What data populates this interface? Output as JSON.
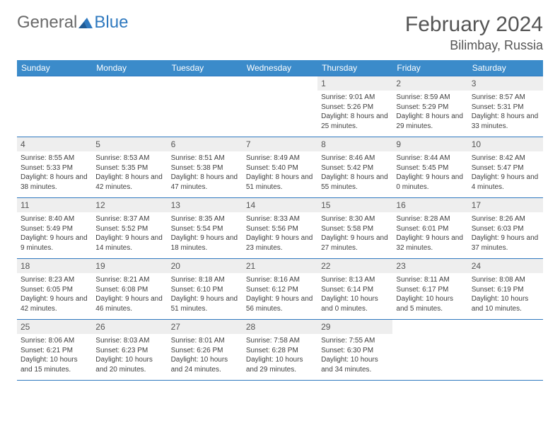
{
  "logo": {
    "word1": "General",
    "word2": "Blue"
  },
  "title": "February 2024",
  "location": "Bilimbay, Russia",
  "colors": {
    "header_bg": "#3b8bca",
    "header_text": "#ffffff",
    "border": "#2f79bf",
    "daynum_bg": "#eeeeee",
    "text": "#3f3f3f",
    "logo_gray": "#6a6a6a",
    "logo_blue": "#2f79bf"
  },
  "weekdays": [
    "Sunday",
    "Monday",
    "Tuesday",
    "Wednesday",
    "Thursday",
    "Friday",
    "Saturday"
  ],
  "weeks": [
    [
      null,
      null,
      null,
      null,
      {
        "n": "1",
        "sr": "Sunrise: 9:01 AM",
        "ss": "Sunset: 5:26 PM",
        "dl": "Daylight: 8 hours and 25 minutes."
      },
      {
        "n": "2",
        "sr": "Sunrise: 8:59 AM",
        "ss": "Sunset: 5:29 PM",
        "dl": "Daylight: 8 hours and 29 minutes."
      },
      {
        "n": "3",
        "sr": "Sunrise: 8:57 AM",
        "ss": "Sunset: 5:31 PM",
        "dl": "Daylight: 8 hours and 33 minutes."
      }
    ],
    [
      {
        "n": "4",
        "sr": "Sunrise: 8:55 AM",
        "ss": "Sunset: 5:33 PM",
        "dl": "Daylight: 8 hours and 38 minutes."
      },
      {
        "n": "5",
        "sr": "Sunrise: 8:53 AM",
        "ss": "Sunset: 5:35 PM",
        "dl": "Daylight: 8 hours and 42 minutes."
      },
      {
        "n": "6",
        "sr": "Sunrise: 8:51 AM",
        "ss": "Sunset: 5:38 PM",
        "dl": "Daylight: 8 hours and 47 minutes."
      },
      {
        "n": "7",
        "sr": "Sunrise: 8:49 AM",
        "ss": "Sunset: 5:40 PM",
        "dl": "Daylight: 8 hours and 51 minutes."
      },
      {
        "n": "8",
        "sr": "Sunrise: 8:46 AM",
        "ss": "Sunset: 5:42 PM",
        "dl": "Daylight: 8 hours and 55 minutes."
      },
      {
        "n": "9",
        "sr": "Sunrise: 8:44 AM",
        "ss": "Sunset: 5:45 PM",
        "dl": "Daylight: 9 hours and 0 minutes."
      },
      {
        "n": "10",
        "sr": "Sunrise: 8:42 AM",
        "ss": "Sunset: 5:47 PM",
        "dl": "Daylight: 9 hours and 4 minutes."
      }
    ],
    [
      {
        "n": "11",
        "sr": "Sunrise: 8:40 AM",
        "ss": "Sunset: 5:49 PM",
        "dl": "Daylight: 9 hours and 9 minutes."
      },
      {
        "n": "12",
        "sr": "Sunrise: 8:37 AM",
        "ss": "Sunset: 5:52 PM",
        "dl": "Daylight: 9 hours and 14 minutes."
      },
      {
        "n": "13",
        "sr": "Sunrise: 8:35 AM",
        "ss": "Sunset: 5:54 PM",
        "dl": "Daylight: 9 hours and 18 minutes."
      },
      {
        "n": "14",
        "sr": "Sunrise: 8:33 AM",
        "ss": "Sunset: 5:56 PM",
        "dl": "Daylight: 9 hours and 23 minutes."
      },
      {
        "n": "15",
        "sr": "Sunrise: 8:30 AM",
        "ss": "Sunset: 5:58 PM",
        "dl": "Daylight: 9 hours and 27 minutes."
      },
      {
        "n": "16",
        "sr": "Sunrise: 8:28 AM",
        "ss": "Sunset: 6:01 PM",
        "dl": "Daylight: 9 hours and 32 minutes."
      },
      {
        "n": "17",
        "sr": "Sunrise: 8:26 AM",
        "ss": "Sunset: 6:03 PM",
        "dl": "Daylight: 9 hours and 37 minutes."
      }
    ],
    [
      {
        "n": "18",
        "sr": "Sunrise: 8:23 AM",
        "ss": "Sunset: 6:05 PM",
        "dl": "Daylight: 9 hours and 42 minutes."
      },
      {
        "n": "19",
        "sr": "Sunrise: 8:21 AM",
        "ss": "Sunset: 6:08 PM",
        "dl": "Daylight: 9 hours and 46 minutes."
      },
      {
        "n": "20",
        "sr": "Sunrise: 8:18 AM",
        "ss": "Sunset: 6:10 PM",
        "dl": "Daylight: 9 hours and 51 minutes."
      },
      {
        "n": "21",
        "sr": "Sunrise: 8:16 AM",
        "ss": "Sunset: 6:12 PM",
        "dl": "Daylight: 9 hours and 56 minutes."
      },
      {
        "n": "22",
        "sr": "Sunrise: 8:13 AM",
        "ss": "Sunset: 6:14 PM",
        "dl": "Daylight: 10 hours and 0 minutes."
      },
      {
        "n": "23",
        "sr": "Sunrise: 8:11 AM",
        "ss": "Sunset: 6:17 PM",
        "dl": "Daylight: 10 hours and 5 minutes."
      },
      {
        "n": "24",
        "sr": "Sunrise: 8:08 AM",
        "ss": "Sunset: 6:19 PM",
        "dl": "Daylight: 10 hours and 10 minutes."
      }
    ],
    [
      {
        "n": "25",
        "sr": "Sunrise: 8:06 AM",
        "ss": "Sunset: 6:21 PM",
        "dl": "Daylight: 10 hours and 15 minutes."
      },
      {
        "n": "26",
        "sr": "Sunrise: 8:03 AM",
        "ss": "Sunset: 6:23 PM",
        "dl": "Daylight: 10 hours and 20 minutes."
      },
      {
        "n": "27",
        "sr": "Sunrise: 8:01 AM",
        "ss": "Sunset: 6:26 PM",
        "dl": "Daylight: 10 hours and 24 minutes."
      },
      {
        "n": "28",
        "sr": "Sunrise: 7:58 AM",
        "ss": "Sunset: 6:28 PM",
        "dl": "Daylight: 10 hours and 29 minutes."
      },
      {
        "n": "29",
        "sr": "Sunrise: 7:55 AM",
        "ss": "Sunset: 6:30 PM",
        "dl": "Daylight: 10 hours and 34 minutes."
      },
      null,
      null
    ]
  ]
}
